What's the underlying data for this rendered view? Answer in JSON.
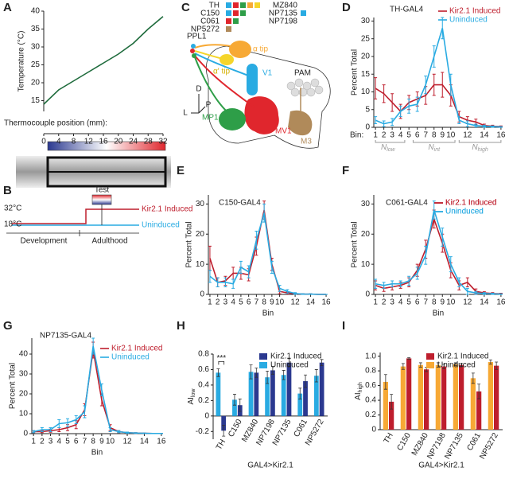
{
  "panel_labels": [
    "A",
    "B",
    "C",
    "D",
    "E",
    "F",
    "G",
    "H",
    "I"
  ],
  "diagram_b": {
    "test": "Test",
    "high_temp": "32°C",
    "low_temp": "18°C",
    "induced": "Kir2.1 Induced",
    "uninduced": "Uninduced",
    "development": "Development",
    "adulthood": "Adulthood"
  },
  "diagram_c": {
    "lines_left": [
      "TH",
      "C150",
      "C061",
      "NP5272"
    ],
    "lines_right": [
      "MZ840",
      "NP7135",
      "NP7198"
    ],
    "neurons": [
      "PPL1",
      "PAM"
    ],
    "regions": {
      "alpha_tip": "α tip",
      "alpha_prime_tip": "α' tip",
      "v1": "V1",
      "mp1": "MP1",
      "mv1": "MV1",
      "m3": "M3"
    },
    "axes": [
      "D",
      "P",
      "L"
    ]
  },
  "chart_data": [
    {
      "type": "line",
      "ylabel": "Temperature (°C)",
      "xlabel": "Thermocouple position (mm):",
      "color": "#1e6b3c",
      "x": [
        0,
        4,
        8,
        12,
        16,
        20,
        24,
        28,
        32
      ],
      "values": [
        14,
        18,
        20.5,
        23,
        25.5,
        28,
        31,
        35,
        38.5
      ],
      "xlim": [
        0,
        32
      ],
      "xticks": [
        0,
        4,
        8,
        12,
        16,
        20,
        24,
        28,
        32
      ],
      "ylim": [
        12,
        40
      ],
      "yticks": [
        15,
        20,
        25,
        30,
        35,
        40
      ]
    },
    {
      "type": "line",
      "title": "TH-GAL4",
      "ylabel": "Percent Total",
      "xlabel": "Bin:",
      "x": [
        1,
        2,
        3,
        4,
        5,
        6,
        7,
        8,
        9,
        10,
        11,
        12,
        13,
        14,
        15,
        16
      ],
      "xlim": [
        0.8,
        16.2
      ],
      "xticks": [
        1,
        2,
        3,
        4,
        5,
        6,
        7,
        8,
        9,
        10,
        12,
        14,
        16
      ],
      "ylim": [
        0,
        31
      ],
      "yticks": [
        0,
        5,
        10,
        15,
        20,
        25,
        30
      ],
      "annotations": [
        {
          "text": "N",
          "sub": "low"
        },
        {
          "text": "N",
          "sub": "int"
        },
        {
          "text": "N",
          "sub": "high"
        }
      ],
      "series": [
        {
          "name": "Kir2.1 Induced",
          "color": "#be1e2d",
          "values": [
            11,
            9.5,
            7,
            4.5,
            7,
            8,
            9,
            12,
            12,
            9,
            3,
            2,
            1.5,
            0.5,
            0.3,
            0.2
          ],
          "errors": [
            3,
            2.5,
            2.5,
            2,
            2,
            2,
            2.5,
            3,
            3.5,
            3,
            1.5,
            1,
            0.8,
            0.4,
            0.3,
            0.2
          ]
        },
        {
          "name": "Uninduced",
          "color": "#29abe2",
          "values": [
            2,
            1,
            1.5,
            4.5,
            6,
            6.5,
            12,
            20,
            28,
            12,
            2,
            1,
            0.5,
            0.3,
            0.2,
            0.1
          ],
          "errors": [
            1,
            0.8,
            1,
            1.5,
            2,
            2,
            2.5,
            3,
            3,
            3,
            1,
            0.8,
            0.4,
            0.3,
            0.2,
            0.1
          ]
        }
      ]
    },
    {
      "type": "line",
      "title": "C150-GAL4",
      "ylabel": "Percent Total",
      "xlabel": "Bin",
      "x": [
        1,
        2,
        3,
        4,
        5,
        6,
        7,
        8,
        9,
        10,
        11,
        12,
        13,
        14,
        15,
        16
      ],
      "xlim": [
        0.8,
        16.2
      ],
      "xticks": [
        1,
        2,
        3,
        4,
        5,
        6,
        7,
        8,
        9,
        10,
        12,
        14,
        16
      ],
      "ylim": [
        0,
        33
      ],
      "yticks": [
        0,
        10,
        20,
        30
      ],
      "series": [
        {
          "name": "Kir2.1 Induced",
          "color": "#be1e2d",
          "values": [
            12,
            4,
            4.5,
            7,
            7,
            6.5,
            16,
            28,
            10,
            1,
            0.5,
            0.2,
            0.1,
            0.1,
            0,
            0
          ],
          "errors": [
            4,
            1.5,
            1.5,
            2,
            2,
            2,
            3,
            3,
            2,
            0.8,
            0.4,
            0.2,
            0.1,
            0.1,
            0,
            0
          ]
        },
        {
          "name": "Uninduced",
          "color": "#29abe2",
          "values": [
            6,
            4,
            4,
            3.5,
            9,
            7.5,
            18,
            27,
            9,
            2,
            1,
            0.3,
            0.1,
            0.1,
            0,
            0
          ],
          "errors": [
            2,
            1.5,
            1.5,
            1.5,
            2,
            2,
            3,
            3,
            2,
            1,
            0.6,
            0.3,
            0.1,
            0.1,
            0,
            0
          ]
        }
      ]
    },
    {
      "type": "line",
      "title": "C061-GAL4",
      "ylabel": "Percent Total",
      "xlabel": "Bin",
      "x": [
        1,
        2,
        3,
        4,
        5,
        6,
        7,
        8,
        9,
        10,
        11,
        12,
        13,
        14,
        15,
        16
      ],
      "xlim": [
        0.8,
        16.2
      ],
      "xticks": [
        1,
        2,
        3,
        4,
        5,
        6,
        7,
        8,
        9,
        10,
        12,
        14,
        16
      ],
      "ylim": [
        0,
        33
      ],
      "yticks": [
        0,
        10,
        20,
        30
      ],
      "series": [
        {
          "name": "Kir2.1 Induced",
          "color": "#be1e2d",
          "values": [
            3,
            2,
            2.5,
            3,
            4,
            8,
            15,
            25,
            17,
            8,
            3,
            4,
            1,
            0.5,
            0.3,
            0.2
          ],
          "errors": [
            1.5,
            1,
            1,
            1,
            1.5,
            2,
            3,
            3,
            3,
            2.5,
            1.5,
            1.5,
            0.8,
            0.4,
            0.3,
            0.2
          ]
        },
        {
          "name": "Uninduced",
          "color": "#29abe2",
          "values": [
            3.5,
            3,
            3.5,
            3.5,
            4.5,
            7,
            13,
            28,
            19,
            10,
            4,
            1,
            0.5,
            0.3,
            0.2,
            0.1
          ],
          "errors": [
            1.5,
            1,
            1,
            1,
            1.5,
            2,
            3,
            3,
            3,
            2.5,
            1.5,
            1,
            0.5,
            0.3,
            0.2,
            0.1
          ]
        }
      ]
    },
    {
      "type": "line",
      "title": "NP7135-GAL4",
      "ylabel": "Percent Total",
      "xlabel": "Bin",
      "x": [
        1,
        2,
        3,
        4,
        5,
        6,
        7,
        8,
        9,
        10,
        11,
        12,
        13,
        14,
        15,
        16
      ],
      "xlim": [
        0.8,
        16.2
      ],
      "xticks": [
        1,
        2,
        3,
        4,
        5,
        6,
        7,
        8,
        9,
        10,
        12,
        14,
        16
      ],
      "ylim": [
        0,
        48
      ],
      "yticks": [
        0,
        10,
        20,
        30,
        40
      ],
      "series": [
        {
          "name": "Kir2.1 Induced",
          "color": "#be1e2d",
          "values": [
            1,
            1,
            1.5,
            2,
            3,
            4.5,
            12,
            42,
            17,
            3,
            1,
            0.5,
            0.3,
            0.2,
            0.1,
            0.1
          ],
          "errors": [
            0.5,
            0.5,
            0.8,
            1,
            1.5,
            2,
            3,
            4,
            3,
            1.5,
            0.5,
            0.3,
            0.2,
            0.1,
            0.1,
            0.1
          ]
        },
        {
          "name": "Uninduced",
          "color": "#29abe2",
          "values": [
            1,
            2,
            2,
            5,
            5.5,
            7,
            11,
            44,
            22,
            2,
            1,
            0.5,
            0.3,
            0.2,
            0.1,
            0.1
          ],
          "errors": [
            0.5,
            1,
            1,
            2,
            2,
            2,
            3,
            4,
            3,
            1,
            0.5,
            0.3,
            0.2,
            0.1,
            0.1,
            0.1
          ]
        }
      ]
    },
    {
      "type": "bar",
      "ylabel": {
        "text": "AI",
        "sub": "low"
      },
      "xlabel": "GAL4>Kir2.1",
      "significance": "***",
      "categories": [
        "TH",
        "C150",
        "MZ840",
        "NP7198",
        "NP7135",
        "C061",
        "NP5272"
      ],
      "ylim": [
        -0.3,
        0.8
      ],
      "yticks": [
        -0.2,
        0,
        0.2,
        0.4,
        0.6,
        0.8
      ],
      "series": [
        {
          "name": "Kir2.1 Induced",
          "color": "#2b3990",
          "values": [
            -0.19,
            0.14,
            0.56,
            0.59,
            0.69,
            0.45,
            0.69
          ],
          "errors": [
            0.07,
            0.08,
            0.06,
            0.05,
            0.05,
            0.08,
            0.04
          ]
        },
        {
          "name": "Uninduced",
          "color": "#29abe2",
          "values": [
            0.56,
            0.21,
            0.57,
            0.5,
            0.53,
            0.29,
            0.52
          ],
          "errors": [
            0.05,
            0.07,
            0.09,
            0.08,
            0.06,
            0.07,
            0.08
          ]
        }
      ]
    },
    {
      "type": "bar",
      "ylabel": {
        "text": "AI",
        "sub": "high"
      },
      "xlabel": "GAL4>Kir2.1",
      "categories": [
        "TH",
        "C150",
        "MZ840",
        "NP7198",
        "NP7135",
        "C061",
        "NP5272"
      ],
      "ylim": [
        0,
        1.05
      ],
      "yticks": [
        0,
        0.2,
        0.4,
        0.6,
        0.8,
        {
          "value": 1,
          "label": "1.0"
        }
      ],
      "series": [
        {
          "name": "Kir2.1 Induced",
          "color": "#be1e2d",
          "values": [
            0.38,
            0.97,
            0.82,
            0.86,
            0.88,
            0.52,
            0.87
          ],
          "errors": [
            0.1,
            0.01,
            0.03,
            0.03,
            0.02,
            0.1,
            0.05
          ]
        },
        {
          "name": "Uninduced",
          "color": "#f7a935",
          "values": [
            0.65,
            0.86,
            0.88,
            0.88,
            0.89,
            0.7,
            0.92
          ],
          "errors": [
            0.1,
            0.04,
            0.03,
            0.03,
            0.02,
            0.07,
            0.03
          ]
        }
      ]
    }
  ]
}
